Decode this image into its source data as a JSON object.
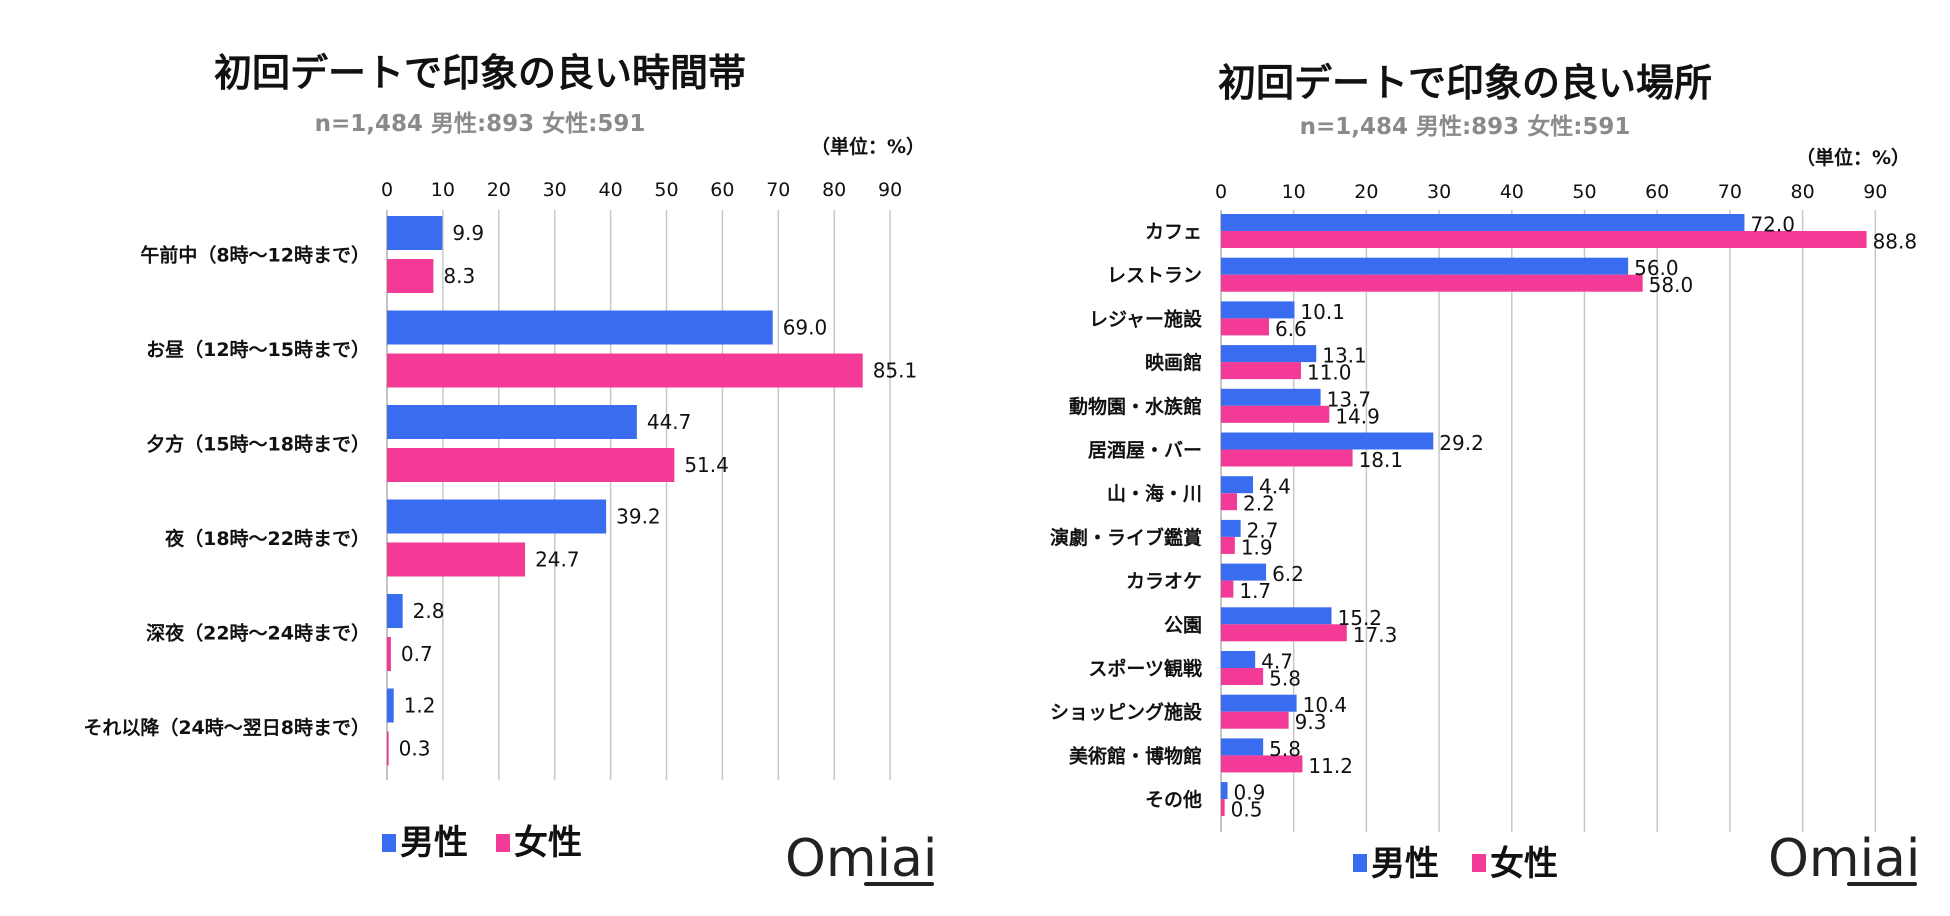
{
  "colors": {
    "male": "#3a6cf0",
    "female": "#f23a96",
    "grid": "#c8c8c8",
    "subtitle": "#8a8a8a"
  },
  "legend": {
    "male": "男性",
    "female": "女性"
  },
  "logo": "Omiai",
  "chart_data": [
    {
      "type": "bar",
      "orientation": "horizontal",
      "title": "初回デートで印象の良い時間帯",
      "subtitle": "n=1,484  男性:893 女性:591",
      "unit": "（単位：%）",
      "xlim": [
        0,
        90
      ],
      "ticks": [
        0,
        10,
        20,
        30,
        40,
        50,
        60,
        70,
        80,
        90
      ],
      "categories": [
        "午前中（8時～12時まで）",
        "お昼（12時～15時まで）",
        "夕方（15時～18時まで）",
        "夜（18時～22時まで）",
        "深夜（22時～24時まで）",
        "それ以降（24時～翌日8時まで）"
      ],
      "series": [
        {
          "name": "男性",
          "values": [
            9.9,
            69.0,
            44.7,
            39.2,
            2.8,
            1.2
          ]
        },
        {
          "name": "女性",
          "values": [
            8.3,
            85.1,
            51.4,
            24.7,
            0.7,
            0.3
          ]
        }
      ]
    },
    {
      "type": "bar",
      "orientation": "horizontal",
      "title": "初回デートで印象の良い場所",
      "subtitle": "n=1,484  男性:893 女性:591",
      "unit": "（単位：%）",
      "xlim": [
        0,
        90
      ],
      "ticks": [
        0,
        10,
        20,
        30,
        40,
        50,
        60,
        70,
        80,
        90
      ],
      "categories": [
        "カフェ",
        "レストラン",
        "レジャー施設",
        "映画館",
        "動物園・水族館",
        "居酒屋・バー",
        "山・海・川",
        "演劇・ライブ鑑賞",
        "カラオケ",
        "公園",
        "スポーツ観戦",
        "ショッピング施設",
        "美術館・博物館",
        "その他"
      ],
      "series": [
        {
          "name": "男性",
          "values": [
            72.0,
            56.0,
            10.1,
            13.1,
            13.7,
            29.2,
            4.4,
            2.7,
            6.2,
            15.2,
            4.7,
            10.4,
            5.8,
            0.9
          ]
        },
        {
          "name": "女性",
          "values": [
            88.8,
            58.0,
            6.6,
            11.0,
            14.9,
            18.1,
            2.2,
            1.9,
            1.7,
            17.3,
            5.8,
            9.3,
            11.2,
            0.5
          ]
        }
      ]
    }
  ]
}
